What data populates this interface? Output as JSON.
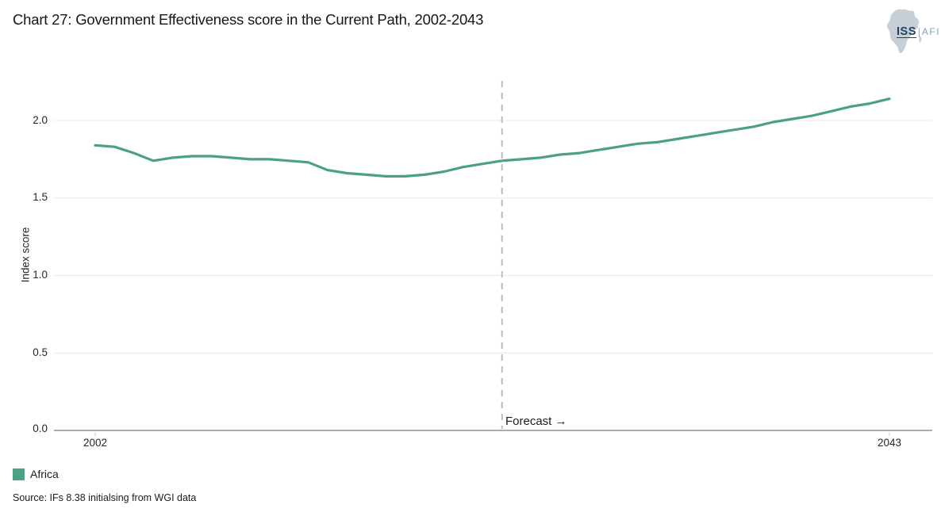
{
  "header": {
    "logo": {
      "iss": "ISS",
      "afi": "AFI"
    }
  },
  "chart_data": {
    "type": "line",
    "title": "Chart 27: Government Effectiveness score in the Current Path, 2002-2043",
    "xlabel": "",
    "ylabel": "Index score",
    "ylim": [
      0,
      2.25
    ],
    "x_range": [
      2002,
      2043
    ],
    "grid": true,
    "legend_position": "bottom-left",
    "yticks": [
      2.0,
      1.5,
      1.0,
      0.5,
      0.0
    ],
    "ytick_labels": [
      "2.0",
      "1.5",
      "1.0",
      "0.5",
      "0.0"
    ],
    "xtick_labels": [
      "2002",
      "2043"
    ],
    "forecast": {
      "year": 2023,
      "label": "Forecast →"
    },
    "x": [
      2002,
      2003,
      2004,
      2005,
      2006,
      2007,
      2008,
      2009,
      2010,
      2011,
      2012,
      2013,
      2014,
      2015,
      2016,
      2017,
      2018,
      2019,
      2020,
      2021,
      2022,
      2023,
      2024,
      2025,
      2026,
      2027,
      2028,
      2029,
      2030,
      2031,
      2032,
      2033,
      2034,
      2035,
      2036,
      2037,
      2038,
      2039,
      2040,
      2041,
      2042,
      2043
    ],
    "series": [
      {
        "name": "Africa",
        "color": "#4ca185",
        "values": [
          1.84,
          1.83,
          1.79,
          1.74,
          1.76,
          1.77,
          1.77,
          1.76,
          1.75,
          1.75,
          1.74,
          1.73,
          1.68,
          1.66,
          1.65,
          1.64,
          1.64,
          1.65,
          1.67,
          1.7,
          1.72,
          1.74,
          1.75,
          1.76,
          1.78,
          1.79,
          1.81,
          1.83,
          1.85,
          1.86,
          1.88,
          1.9,
          1.92,
          1.94,
          1.96,
          1.99,
          2.01,
          2.03,
          2.06,
          2.09,
          2.11,
          2.14
        ]
      }
    ],
    "colors": {
      "gridline": "#e9e9e9",
      "axis": "#8f8f8f",
      "forecast_line": "#b4b4b4"
    }
  },
  "legend": {
    "items": [
      {
        "label": "Africa",
        "color": "#4ca185"
      }
    ]
  },
  "source": "Source: IFs 8.38 initialsing from WGI data"
}
